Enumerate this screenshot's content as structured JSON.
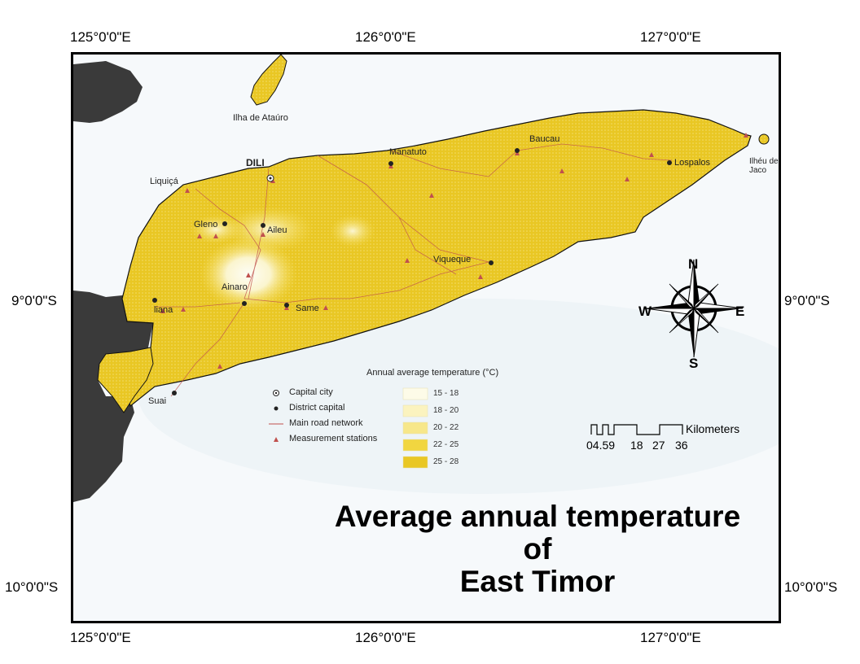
{
  "axes": {
    "top": [
      "125°0'0\"E",
      "126°0'0\"E",
      "127°0'0\"E"
    ],
    "bottom": [
      "125°0'0\"E",
      "126°0'0\"E",
      "127°0'0\"E"
    ],
    "left": [
      "9°0'0\"S",
      "10°0'0\"S"
    ],
    "right": [
      "9°0'0\"S",
      "10°0'0\"S"
    ]
  },
  "places": {
    "atauro": "Ilha de Ataúro",
    "dili": "DILI",
    "liquica": "Liquiçá",
    "manatuto": "Manatuto",
    "baucau": "Baucau",
    "lospalos": "Lospalos",
    "jaco": "Ilhéu de Jaco",
    "gleno": "Gleno",
    "aileu": "Aileu",
    "viqueque": "Viqueque",
    "ainaro": "Ainaro",
    "same": "Same",
    "maliana": "liana",
    "suai": "Suai"
  },
  "legend": {
    "capital": "Capital city",
    "district": "District capital",
    "road": "Main road network",
    "stations": "Measurement stations",
    "temp_title": "Annual average temperature (°C)",
    "ranges": [
      {
        "label": "15 - 18",
        "color": "#fdfbe8"
      },
      {
        "label": "18 - 20",
        "color": "#fbf3bf"
      },
      {
        "label": "20 - 22",
        "color": "#f7e78a"
      },
      {
        "label": "22 - 25",
        "color": "#f1d640"
      },
      {
        "label": "25 - 28",
        "color": "#e9c724"
      }
    ]
  },
  "compass": {
    "n": "N",
    "s": "S",
    "e": "E",
    "w": "W"
  },
  "scale": {
    "unit": "Kilometers",
    "ticks": [
      "04.59",
      "18",
      "27",
      "36"
    ]
  },
  "title": {
    "line1": "Average annual temperature",
    "line2": "of",
    "line3": "East Timor"
  },
  "colors": {
    "land": "#e9c724",
    "sea": "#f6f9fb",
    "neighbor": "#3a3a3a",
    "road": "#c0504d"
  }
}
